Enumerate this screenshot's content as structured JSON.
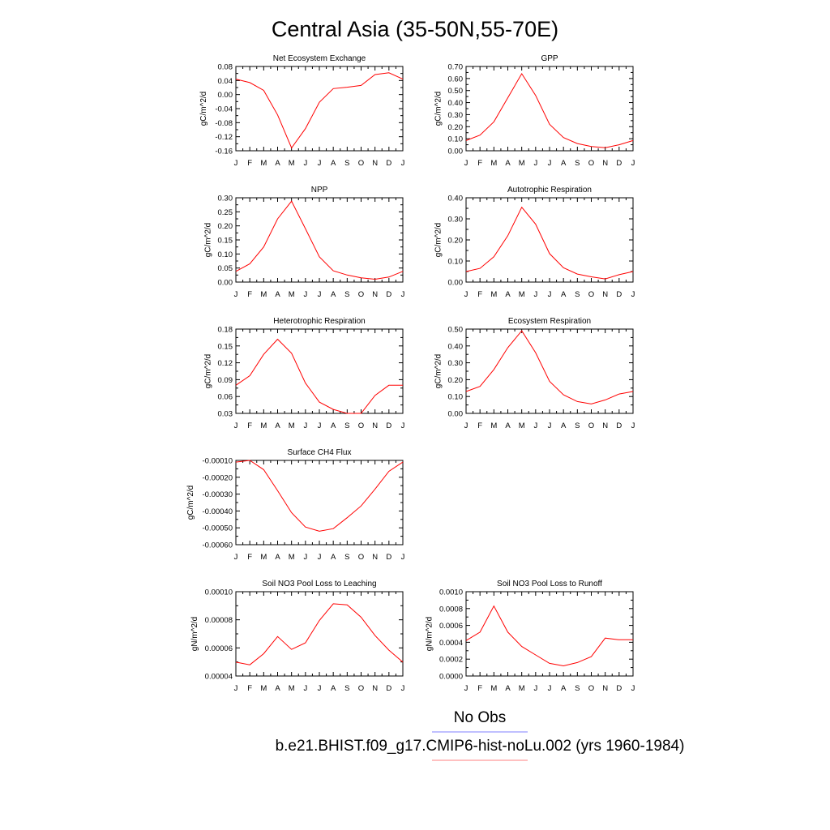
{
  "figure": {
    "title": "Central Asia (35-50N,55-70E)",
    "legend": [
      {
        "label": "No Obs",
        "color": "#8080ff"
      },
      {
        "label": "b.e21.BHIST.f09_g17.CMIP6-hist-noLu.002 (yrs 1960-1984)",
        "color": "#ff8080"
      }
    ],
    "series_color": "#ff0000"
  },
  "chart_data": [
    {
      "type": "line",
      "title": "Net Ecosystem Exchange",
      "ylabel": "gC/m^2/d",
      "categories": [
        "J",
        "F",
        "M",
        "A",
        "M",
        "J",
        "J",
        "A",
        "S",
        "O",
        "N",
        "D",
        "J"
      ],
      "values": [
        0.044,
        0.034,
        0.012,
        -0.058,
        -0.152,
        -0.097,
        -0.022,
        0.017,
        0.021,
        0.026,
        0.057,
        0.062,
        0.044
      ],
      "ylim": [
        -0.16,
        0.08
      ],
      "yticks": [
        "0.08",
        "0.04",
        "0.00",
        "-0.04",
        "-0.08",
        "-0.12",
        "-0.16"
      ]
    },
    {
      "type": "line",
      "title": "GPP",
      "ylabel": "gC/m^2/d",
      "categories": [
        "J",
        "F",
        "M",
        "A",
        "M",
        "J",
        "J",
        "A",
        "S",
        "O",
        "N",
        "D",
        "J"
      ],
      "values": [
        0.085,
        0.13,
        0.24,
        0.44,
        0.64,
        0.46,
        0.22,
        0.11,
        0.06,
        0.035,
        0.025,
        0.05,
        0.085
      ],
      "ylim": [
        0.0,
        0.7
      ],
      "yticks": [
        "0.70",
        "0.60",
        "0.50",
        "0.40",
        "0.30",
        "0.20",
        "0.10",
        "0.00"
      ]
    },
    {
      "type": "line",
      "title": "NPP",
      "ylabel": "gC/m^2/d",
      "categories": [
        "J",
        "F",
        "M",
        "A",
        "M",
        "J",
        "J",
        "A",
        "S",
        "O",
        "N",
        "D",
        "J"
      ],
      "values": [
        0.038,
        0.065,
        0.125,
        0.225,
        0.288,
        0.19,
        0.09,
        0.04,
        0.025,
        0.015,
        0.01,
        0.018,
        0.038
      ],
      "ylim": [
        0.0,
        0.3
      ],
      "yticks": [
        "0.30",
        "0.25",
        "0.20",
        "0.15",
        "0.10",
        "0.05",
        "0.00"
      ]
    },
    {
      "type": "line",
      "title": "Autotrophic Respiration",
      "ylabel": "gC/m^2/d",
      "categories": [
        "J",
        "F",
        "M",
        "A",
        "M",
        "J",
        "J",
        "A",
        "S",
        "O",
        "N",
        "D",
        "J"
      ],
      "values": [
        0.05,
        0.065,
        0.12,
        0.22,
        0.355,
        0.275,
        0.135,
        0.068,
        0.038,
        0.025,
        0.015,
        0.035,
        0.05
      ],
      "ylim": [
        0.0,
        0.4
      ],
      "yticks": [
        "0.40",
        "0.30",
        "0.20",
        "0.10",
        "0.00"
      ]
    },
    {
      "type": "line",
      "title": "Heterotrophic Respiration",
      "ylabel": "gC/m^2/d",
      "categories": [
        "J",
        "F",
        "M",
        "A",
        "M",
        "J",
        "J",
        "A",
        "S",
        "O",
        "N",
        "D",
        "J"
      ],
      "values": [
        0.08,
        0.097,
        0.135,
        0.162,
        0.137,
        0.084,
        0.05,
        0.037,
        0.03,
        0.03,
        0.062,
        0.08,
        0.08
      ],
      "ylim": [
        0.03,
        0.18
      ],
      "yticks": [
        "0.18",
        "0.15",
        "0.12",
        "0.09",
        "0.06",
        "0.03"
      ]
    },
    {
      "type": "line",
      "title": "Ecosystem Respiration",
      "ylabel": "gC/m^2/d",
      "categories": [
        "J",
        "F",
        "M",
        "A",
        "M",
        "J",
        "J",
        "A",
        "S",
        "O",
        "N",
        "D",
        "J"
      ],
      "values": [
        0.13,
        0.16,
        0.26,
        0.39,
        0.49,
        0.36,
        0.19,
        0.11,
        0.07,
        0.056,
        0.08,
        0.115,
        0.13
      ],
      "ylim": [
        0.0,
        0.5
      ],
      "yticks": [
        "0.50",
        "0.40",
        "0.30",
        "0.20",
        "0.10",
        "0.00"
      ]
    },
    {
      "type": "line",
      "title": "Surface CH4 Flux",
      "ylabel": "gC/m^2/d",
      "categories": [
        "J",
        "F",
        "M",
        "A",
        "M",
        "J",
        "J",
        "A",
        "S",
        "O",
        "N",
        "D",
        "J"
      ],
      "values": [
        -0.00011,
        -0.0001,
        -0.000155,
        -0.00028,
        -0.00041,
        -0.000495,
        -0.00052,
        -0.000505,
        -0.00044,
        -0.00037,
        -0.00027,
        -0.000165,
        -0.00011
      ],
      "ylim": [
        -0.0006,
        -0.0001
      ],
      "yticks": [
        "-0.00010",
        "-0.00020",
        "-0.00030",
        "-0.00040",
        "-0.00050",
        "-0.00060"
      ]
    },
    {
      "type": "line",
      "title": "Soil NO3 Pool Loss to Leaching",
      "ylabel": "gN/m^2/d",
      "categories": [
        "J",
        "F",
        "M",
        "A",
        "M",
        "J",
        "J",
        "A",
        "S",
        "O",
        "N",
        "D",
        "J"
      ],
      "values": [
        5.15e-05,
        4.93e-05,
        5.85e-05,
        7.28e-05,
        6.21e-05,
        6.75e-05,
        8.61e-05,
        0.0001,
        9.91e-05,
        8.88e-05,
        7.36e-05,
        6.15e-05,
        5.15e-05
      ],
      "ylim": [
        4e-05,
        0.00011
      ],
      "yticks": [
        "0.00010",
        "0.00008",
        "0.00006",
        "0.00004"
      ]
    },
    {
      "type": "line",
      "title": "Soil NO3 Pool Loss to Runoff",
      "ylabel": "gN/m^2/d",
      "categories": [
        "J",
        "F",
        "M",
        "A",
        "M",
        "J",
        "J",
        "A",
        "S",
        "O",
        "N",
        "D",
        "J"
      ],
      "values": [
        0.00042,
        0.00052,
        0.00083,
        0.00052,
        0.00035,
        0.00025,
        0.00015,
        0.00012,
        0.00016,
        0.00023,
        0.00045,
        0.00043,
        0.00043
      ],
      "ylim": [
        0.0,
        0.001
      ],
      "yticks": [
        "0.0010",
        "0.0008",
        "0.0006",
        "0.0004",
        "0.0002",
        "0.0000"
      ]
    }
  ]
}
